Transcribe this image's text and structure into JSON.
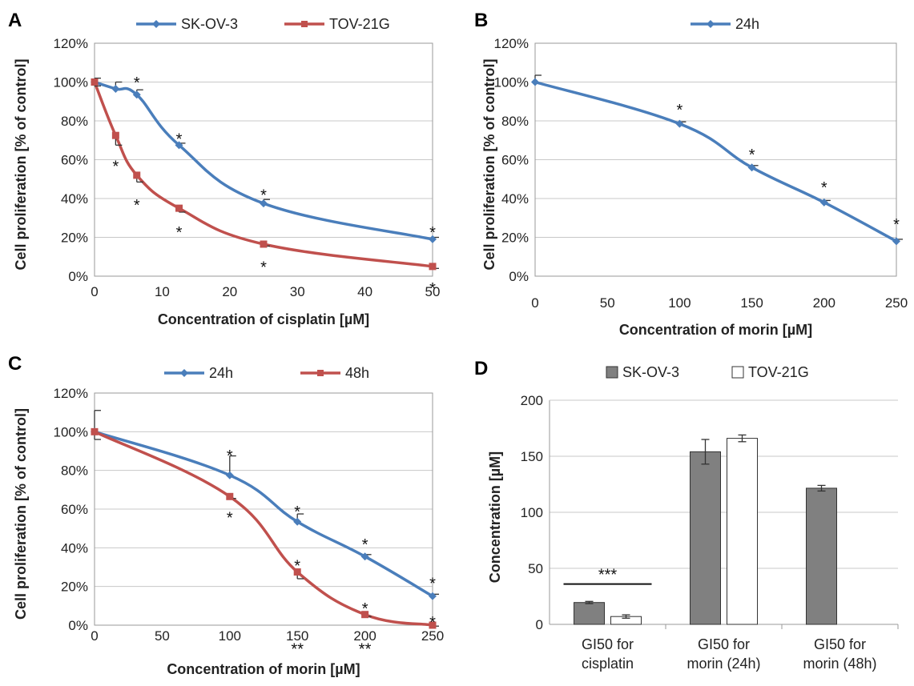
{
  "colors": {
    "blue": "#4a7ebb",
    "red": "#c0504d",
    "gray_bar": "#808080",
    "white_bar": "#ffffff"
  },
  "chart_data": [
    {
      "panel": "A",
      "type": "line",
      "xlabel": "Concentration of cisplatin [µM]",
      "ylabel": "Cell proliferation [% of control]",
      "xlim": [
        0,
        50
      ],
      "ylim": [
        0,
        120
      ],
      "xticks": [
        "0",
        "10",
        "20",
        "30",
        "40",
        "50"
      ],
      "yticks": [
        "0%",
        "20%",
        "40%",
        "60%",
        "80%",
        "100%",
        "120%"
      ],
      "grid": "horizontal",
      "legend": "top-center",
      "series": [
        {
          "name": "SK-OV-3",
          "color": "blue",
          "marker": "diamond",
          "x": [
            0,
            3.125,
            6.25,
            12.5,
            25,
            50
          ],
          "y": [
            100,
            96.5,
            93.5,
            67.5,
            37.5,
            19
          ],
          "err": [
            2,
            3.5,
            2.5,
            1,
            2,
            1
          ],
          "stars": [
            {
              "x": 6.25,
              "y": 101,
              "text": "*"
            },
            {
              "x": 12.5,
              "y": 72,
              "text": "*"
            },
            {
              "x": 25,
              "y": 43,
              "text": "*"
            },
            {
              "x": 50,
              "y": 24,
              "text": "*"
            }
          ]
        },
        {
          "name": "TOV-21G",
          "color": "red",
          "marker": "square",
          "x": [
            0,
            3.125,
            6.25,
            12.5,
            25,
            50
          ],
          "y": [
            100,
            72.5,
            52,
            35,
            16.5,
            5
          ],
          "err": [
            2,
            5,
            3.5,
            2,
            1,
            1
          ],
          "stars": [
            {
              "x": 3.125,
              "y": 58,
              "text": "*"
            },
            {
              "x": 6.25,
              "y": 38,
              "text": "*"
            },
            {
              "x": 12.5,
              "y": 24,
              "text": "*"
            },
            {
              "x": 25,
              "y": 6,
              "text": "*"
            },
            {
              "x": 50,
              "y": -5,
              "text": "*"
            }
          ]
        }
      ]
    },
    {
      "panel": "B",
      "type": "line",
      "xlabel": "Concentration of morin [µM]",
      "ylabel": "Cell proliferation [% of control]",
      "xlim": [
        0,
        250
      ],
      "ylim": [
        0,
        120
      ],
      "xticks": [
        "0",
        "50",
        "100",
        "150",
        "200",
        "250"
      ],
      "yticks": [
        "0%",
        "20%",
        "40%",
        "60%",
        "80%",
        "100%",
        "120%"
      ],
      "grid": "horizontal",
      "legend": "top-center",
      "series": [
        {
          "name": "24h",
          "color": "blue",
          "marker": "diamond",
          "x": [
            0,
            100,
            150,
            200,
            250
          ],
          "y": [
            100,
            78.5,
            56,
            38,
            18
          ],
          "err": [
            3.5,
            1,
            1,
            1,
            1
          ],
          "stars": [
            {
              "x": 100,
              "y": 87,
              "text": "*"
            },
            {
              "x": 150,
              "y": 64,
              "text": "*"
            },
            {
              "x": 200,
              "y": 47,
              "text": "*"
            },
            {
              "x": 250,
              "y": 28,
              "text": "*"
            }
          ]
        }
      ]
    },
    {
      "panel": "C",
      "type": "line",
      "xlabel": "Concentration of morin [µM]",
      "ylabel": "Cell proliferation [% of control]",
      "xlim": [
        0,
        250
      ],
      "ylim": [
        0,
        120
      ],
      "xticks": [
        "0",
        "50",
        "100",
        "150",
        "200",
        "250"
      ],
      "yticks": [
        "0%",
        "20%",
        "40%",
        "60%",
        "80%",
        "100%",
        "120%"
      ],
      "grid": "horizontal",
      "legend": "top-center",
      "series": [
        {
          "name": "24h",
          "color": "blue",
          "marker": "diamond",
          "x": [
            0,
            100,
            150,
            200,
            250
          ],
          "y": [
            100,
            77.5,
            53.5,
            35.5,
            15
          ],
          "err": [
            11,
            10,
            4,
            1,
            1
          ],
          "stars": [
            {
              "x": 100,
              "y": 89,
              "text": "*"
            },
            {
              "x": 150,
              "y": 60,
              "text": "*"
            },
            {
              "x": 200,
              "y": 43,
              "text": "*"
            },
            {
              "x": 250,
              "y": 23,
              "text": "*"
            }
          ]
        },
        {
          "name": "48h",
          "color": "red",
          "marker": "square",
          "x": [
            0,
            100,
            150,
            200,
            250
          ],
          "y": [
            100,
            66.5,
            27.5,
            5.5,
            0
          ],
          "err": [
            4,
            1,
            3.5,
            1,
            0.5
          ],
          "stars": [
            {
              "x": 100,
              "y": 57,
              "text": "*"
            },
            {
              "x": 150,
              "y": 32,
              "text": "*"
            },
            {
              "x": 200,
              "y": 10,
              "text": "*"
            },
            {
              "x": 250,
              "y": 3,
              "text": "*"
            },
            {
              "x": 150,
              "y": -11,
              "text": "**"
            },
            {
              "x": 200,
              "y": -11,
              "text": "**"
            }
          ]
        }
      ]
    },
    {
      "panel": "D",
      "type": "bar",
      "ylabel": "Concentration [µM]",
      "ylim": [
        0,
        200
      ],
      "yticks": [
        "0",
        "50",
        "100",
        "150",
        "200"
      ],
      "grid": "horizontal",
      "legend": "top-center",
      "categories": [
        [
          "GI50 for",
          "cisplatin"
        ],
        [
          "GI50 for",
          "morin (24h)"
        ],
        [
          "GI50 for",
          "morin (48h)"
        ]
      ],
      "series": [
        {
          "name": "SK-OV-3",
          "color": "gray_bar",
          "values": [
            19.5,
            154,
            121.5
          ],
          "err": [
            1,
            11,
            2.5
          ]
        },
        {
          "name": "TOV-21G",
          "color": "white_bar",
          "values": [
            7,
            166,
            null
          ],
          "err": [
            1.5,
            3,
            null
          ]
        }
      ],
      "significance": {
        "category": 0,
        "text": "***"
      }
    }
  ]
}
